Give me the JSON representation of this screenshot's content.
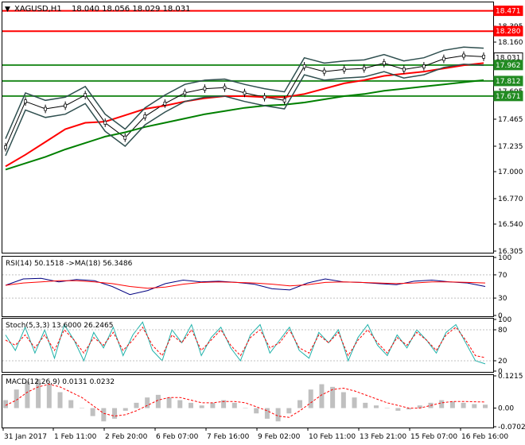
{
  "main_panel": {
    "symbol_label": "XAGUSD,H1",
    "ohlc_label": "18.040 18.056 18.029 18.031",
    "y_min": 16.2,
    "y_max": 18.55,
    "y_ticks": [
      "18.395",
      "18.160",
      "17.925",
      "17.695",
      "17.465",
      "17.235",
      "17.000",
      "16.770",
      "16.540",
      "16.305"
    ],
    "price_tags": [
      {
        "price": 18.471,
        "label": "18.471",
        "color": "#ff0000",
        "line": true
      },
      {
        "price": 18.28,
        "label": "18.280",
        "color": "#ff0000",
        "line": true
      },
      {
        "price": 18.031,
        "label": "18.031",
        "color": "#ffffff",
        "text_color": "#000000",
        "line": false
      },
      {
        "price": 17.962,
        "label": "17.962",
        "color": "#228b22",
        "line": true
      },
      {
        "price": 17.812,
        "label": "17.812",
        "color": "#228b22",
        "line": true
      },
      {
        "price": 17.671,
        "label": "17.671",
        "color": "#228b22",
        "line": true
      }
    ]
  },
  "rsi_panel": {
    "label": "RSI(14) 50.1518 ->MA(18) 56.3486",
    "y_ticks": [
      "100",
      "70",
      "30",
      "0"
    ]
  },
  "stoch_panel": {
    "label": "Stoch(5,3,3) 13.6000 26.2465",
    "y_ticks": [
      "100",
      "80",
      "20",
      "0"
    ]
  },
  "macd_panel": {
    "label": "MACD(12,26,9) 0.0131 0.0232",
    "y_ticks": [
      "0.1215",
      "0.00",
      "-0.0702"
    ]
  },
  "x_ticks": [
    "31 Jan 2017",
    "1 Feb 11:00",
    "2 Feb 20:00",
    "6 Feb 07:00",
    "7 Feb 16:00",
    "9 Feb 02:00",
    "10 Feb 11:00",
    "13 Feb 21:00",
    "15 Feb 07:00",
    "16 Feb 16:00"
  ],
  "colors": {
    "support_line": "#228b22",
    "resistance_line": "#ff0000",
    "ma_fast": "#ff0000",
    "ma_slow": "#008000",
    "bollinger": "#2f4f4f",
    "candles": "#000000",
    "rsi": "#000080",
    "rsi_ma": "#ff0000",
    "stoch_main": "#20b2aa",
    "stoch_signal": "#ff0000",
    "macd_hist": "#c0c0c0",
    "macd_signal": "#ff0000"
  },
  "chart_data": [
    {
      "type": "line",
      "title": "XAGUSD,H1",
      "x_labels": [
        "31 Jan 2017",
        "1 Feb 11:00",
        "2 Feb 20:00",
        "6 Feb 07:00",
        "7 Feb 16:00",
        "9 Feb 02:00",
        "10 Feb 11:00",
        "13 Feb 21:00",
        "15 Feb 07:00",
        "16 Feb 16:00"
      ],
      "series": [
        {
          "values": [
            17.19,
            17.62,
            17.55,
            17.58,
            17.68,
            17.42,
            17.28,
            17.48,
            17.6,
            17.7,
            17.74,
            17.75,
            17.7,
            17.66,
            17.63,
            17.95,
            17.9,
            17.92,
            17.93,
            17.98,
            17.92,
            17.95,
            18.02,
            18.05,
            18.04
          ]
        },
        {
          "values": [
            17.01,
            17.12,
            17.24,
            17.36,
            17.42,
            17.43,
            17.49,
            17.55,
            17.58,
            17.62,
            17.65,
            17.67,
            17.67,
            17.66,
            17.66,
            17.69,
            17.74,
            17.79,
            17.82,
            17.86,
            17.88,
            17.9,
            17.93,
            17.96,
            17.98
          ]
        },
        {
          "values": [
            16.98,
            17.04,
            17.1,
            17.17,
            17.23,
            17.29,
            17.33,
            17.38,
            17.42,
            17.46,
            17.5,
            17.53,
            17.56,
            17.58,
            17.59,
            17.61,
            17.64,
            17.67,
            17.69,
            17.72,
            17.74,
            17.76,
            17.78,
            17.8,
            17.82
          ]
        }
      ],
      "ylim": [
        16.2,
        18.55
      ]
    },
    {
      "type": "line",
      "title": "RSI(14) 50.1518 ->MA(18) 56.3486",
      "ylim": [
        0,
        100
      ],
      "series": [
        {
          "values": [
            52,
            63,
            64,
            58,
            62,
            60,
            50,
            36,
            43,
            55,
            61,
            58,
            59,
            57,
            54,
            46,
            44,
            56,
            63,
            58,
            57,
            55,
            53,
            59,
            61,
            58,
            56,
            50
          ]
        },
        {
          "values": [
            52,
            56,
            58,
            60,
            60,
            58,
            55,
            50,
            47,
            49,
            54,
            57,
            58,
            57,
            56,
            54,
            51,
            53,
            57,
            58,
            57,
            56,
            55,
            56,
            58,
            58,
            57,
            56
          ]
        }
      ]
    },
    {
      "type": "line",
      "title": "Stoch(5,3,3) 13.6000 26.2465",
      "ylim": [
        0,
        100
      ],
      "series": [
        {
          "values": [
            70,
            40,
            85,
            35,
            80,
            25,
            90,
            60,
            20,
            75,
            45,
            85,
            30,
            70,
            95,
            40,
            20,
            80,
            55,
            90,
            30,
            65,
            85,
            45,
            20,
            70,
            90,
            35,
            60,
            85,
            40,
            25,
            75,
            55,
            80,
            20,
            65,
            90,
            50,
            30,
            70,
            45,
            80,
            60,
            35,
            75,
            90,
            55,
            20,
            14
          ]
        },
        {
          "values": [
            60,
            50,
            70,
            45,
            70,
            40,
            80,
            60,
            35,
            65,
            50,
            75,
            40,
            60,
            85,
            50,
            30,
            70,
            55,
            80,
            40,
            60,
            80,
            50,
            30,
            65,
            80,
            45,
            55,
            80,
            45,
            35,
            70,
            55,
            75,
            30,
            60,
            80,
            55,
            35,
            65,
            50,
            75,
            60,
            40,
            70,
            85,
            60,
            30,
            26
          ]
        }
      ]
    },
    {
      "type": "bar",
      "title": "MACD(12,26,9) 0.0131 0.0232",
      "ylim": [
        -0.0702,
        0.1215
      ],
      "series": [
        {
          "values": [
            0.03,
            0.07,
            0.1,
            0.11,
            0.09,
            0.06,
            0.03,
            0.0,
            -0.03,
            -0.05,
            -0.04,
            -0.01,
            0.02,
            0.04,
            0.05,
            0.04,
            0.03,
            0.02,
            0.01,
            0.02,
            0.03,
            0.02,
            0.0,
            -0.02,
            -0.04,
            -0.05,
            -0.02,
            0.03,
            0.07,
            0.09,
            0.08,
            0.06,
            0.04,
            0.02,
            0.01,
            0.0,
            -0.01,
            -0.005,
            0.01,
            0.02,
            0.03,
            0.025,
            0.02,
            0.015,
            0.013
          ]
        },
        {
          "values": [
            0.01,
            0.03,
            0.06,
            0.08,
            0.09,
            0.08,
            0.06,
            0.04,
            0.01,
            -0.02,
            -0.03,
            -0.025,
            -0.01,
            0.01,
            0.03,
            0.04,
            0.04,
            0.03,
            0.02,
            0.02,
            0.025,
            0.025,
            0.02,
            0.005,
            -0.01,
            -0.03,
            -0.035,
            -0.01,
            0.02,
            0.05,
            0.07,
            0.075,
            0.065,
            0.05,
            0.035,
            0.02,
            0.01,
            0.0,
            0.0,
            0.01,
            0.02,
            0.025,
            0.025,
            0.024,
            0.023
          ]
        }
      ]
    }
  ]
}
